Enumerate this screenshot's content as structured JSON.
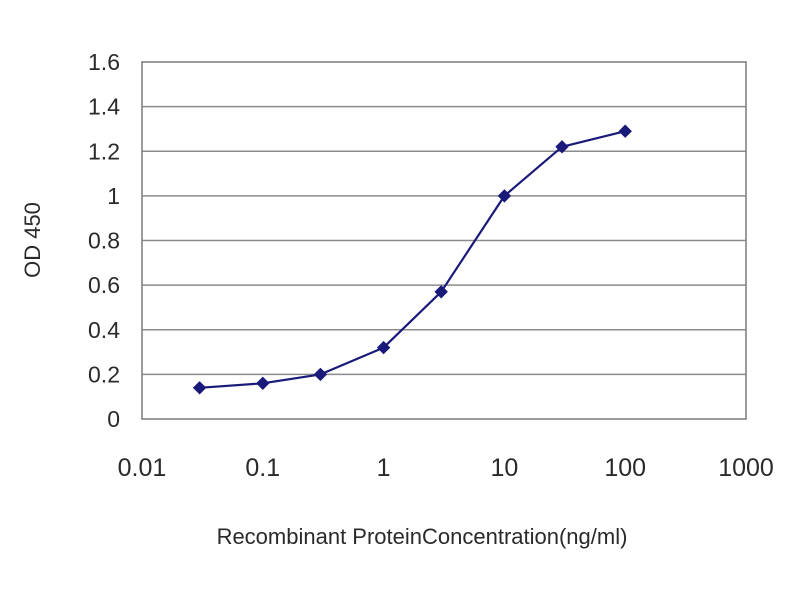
{
  "chart_data": {
    "type": "line",
    "title": "",
    "xlabel": "Recombinant ProteinConcentration(ng/ml)",
    "ylabel": "OD 450",
    "x_scale": "log",
    "xlim": [
      0.01,
      1000
    ],
    "ylim": [
      0,
      1.6
    ],
    "x_ticks": [
      "0.01",
      "0.1",
      "1",
      "10",
      "100",
      "1000"
    ],
    "y_ticks": [
      "0",
      "0.2",
      "0.4",
      "0.6",
      "0.8",
      "1",
      "1.2",
      "1.4",
      "1.6"
    ],
    "grid": "horizontal",
    "legend": "none",
    "series": [
      {
        "x": [
          0.03,
          0.1,
          0.3,
          1,
          3,
          10,
          30,
          100
        ],
        "y": [
          0.14,
          0.16,
          0.2,
          0.32,
          0.57,
          1.0,
          1.22,
          1.29
        ],
        "color": "#1a1a7a",
        "marker": "diamond"
      }
    ],
    "colors": {
      "line": "#1a1a7a",
      "grid": "#8c8c8c",
      "frame": "#7a7a7a"
    }
  }
}
